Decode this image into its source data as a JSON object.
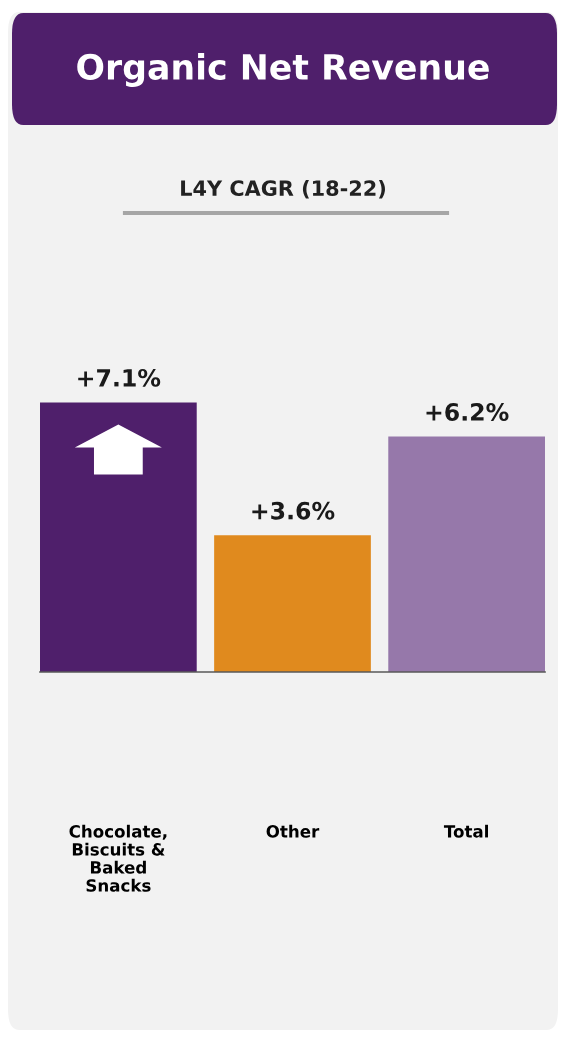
{
  "chart_data": {
    "type": "bar",
    "title": "Organic Net Revenue",
    "subtitle": "L4Y CAGR (18-22)",
    "categories": [
      "Chocolate,\nBiscuits &\nBaked\nSnacks",
      "Other",
      "Total"
    ],
    "values": [
      7.1,
      3.6,
      6.2
    ],
    "colors": [
      "#4f1f6b",
      "#e08a1e",
      "#9678aa"
    ],
    "value_labels": [
      "+7.1%",
      "+3.6%",
      "+6.2%"
    ]
  }
}
